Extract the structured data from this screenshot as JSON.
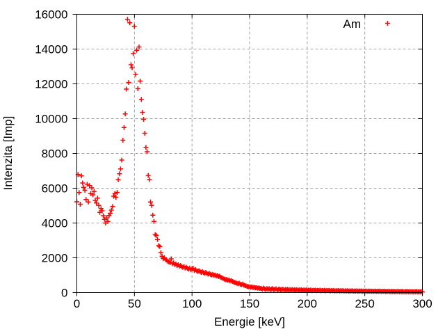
{
  "figure": {
    "background": "#ffffff",
    "text_color": "#000000",
    "grid_color": "#a0a0a0",
    "border_color": "#000000"
  },
  "chart_data": {
    "type": "scatter",
    "title": "",
    "xlabel": "Energie [keV]",
    "ylabel": "Intenzita [Imp]",
    "series_name": "Am",
    "marker": "plus",
    "marker_color": "#ff0000",
    "grid": true,
    "legend_position": "top-right-inside",
    "xlim": [
      0,
      300
    ],
    "ylim": [
      0,
      16000
    ],
    "x_ticks": [
      0,
      50,
      100,
      150,
      200,
      250,
      300
    ],
    "y_ticks": [
      0,
      2000,
      4000,
      6000,
      8000,
      10000,
      12000,
      14000,
      16000
    ],
    "x_start": 0,
    "x_step": 1,
    "values": [
      5220,
      6790,
      5750,
      5080,
      6710,
      6300,
      6050,
      5880,
      5350,
      6230,
      5210,
      6150,
      5690,
      6020,
      5620,
      5810,
      5300,
      5150,
      5430,
      5010,
      4610,
      4830,
      4700,
      4420,
      4210,
      4000,
      4290,
      4090,
      4430,
      4560,
      4740,
      4950,
      5540,
      5700,
      5480,
      5760,
      6490,
      6830,
      7110,
      7620,
      8760,
      9490,
      10270,
      11700,
      15710,
      12080,
      15510,
      13100,
      12920,
      13740,
      15310,
      12540,
      13930,
      11720,
      14120,
      12160,
      11100,
      10360,
      9960,
      9160,
      8350,
      8100,
      6740,
      6500,
      5210,
      5010,
      4450,
      4090,
      3330,
      3290,
      3050,
      2700,
      2650,
      2300,
      2090,
      1950,
      2010,
      1900,
      1870,
      1790,
      1760,
      1730,
      1940,
      1660,
      1710,
      1610,
      1650,
      1560,
      1600,
      1510,
      1560,
      1500,
      1450,
      1510,
      1410,
      1460,
      1400,
      1350,
      1410,
      1310,
      1360,
      1400,
      1270,
      1330,
      1260,
      1210,
      1260,
      1210,
      1160,
      1210,
      1150,
      1110,
      1160,
      1100,
      1060,
      1110,
      1050,
      1010,
      1050,
      1000,
      1010,
      955,
      985,
      920,
      945,
      880,
      850,
      815,
      780,
      745,
      760,
      705,
      730,
      670,
      695,
      640,
      615,
      585,
      560,
      535,
      510,
      540,
      480,
      455,
      495,
      430,
      405,
      380,
      355,
      335,
      340,
      310,
      325,
      290,
      305,
      275,
      285,
      255,
      268,
      240,
      245,
      198,
      260,
      215,
      176,
      238,
      190,
      225,
      170,
      205,
      232,
      165,
      196,
      215,
      152,
      188,
      205,
      160,
      178,
      195,
      146,
      182,
      160,
      190,
      140,
      172,
      152,
      180,
      134,
      164,
      146,
      172,
      128,
      156,
      140,
      165,
      122,
      150,
      134,
      158,
      116,
      144,
      128,
      152,
      112,
      138,
      122,
      146,
      108,
      132,
      118,
      140,
      104,
      126,
      112,
      135,
      100,
      122,
      108,
      130,
      96,
      118,
      104,
      125,
      92,
      114,
      100,
      120,
      88,
      110,
      97,
      116,
      85,
      106,
      93,
      112,
      82,
      102,
      90,
      108,
      79,
      98,
      86,
      104,
      76,
      95,
      83,
      100,
      73,
      92,
      80,
      97,
      70,
      88,
      77,
      94,
      67,
      85,
      74,
      90,
      64,
      82,
      71,
      87,
      61,
      79,
      68,
      84,
      58,
      76,
      65,
      81,
      55,
      73,
      62,
      78,
      52,
      70,
      59,
      75,
      49,
      67,
      56,
      72,
      46,
      64,
      53,
      69,
      43,
      61,
      50,
      66,
      40,
      58,
      47,
      63,
      37,
      55,
      44,
      60,
      42
    ]
  }
}
